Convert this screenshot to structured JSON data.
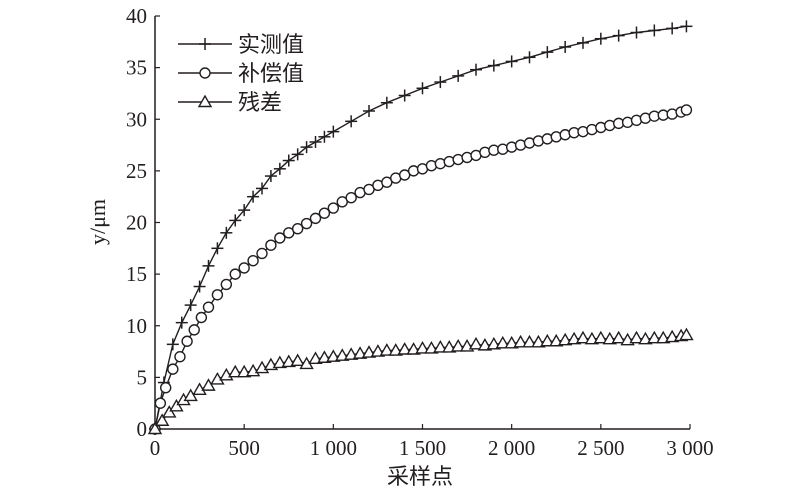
{
  "chart_data": {
    "type": "line",
    "xlabel": "采样点",
    "ylabel": "y/μm",
    "xlim": [
      0,
      3000
    ],
    "ylim": [
      0,
      40
    ],
    "x_ticks": [
      0,
      500,
      1000,
      1500,
      2000,
      2500,
      3000
    ],
    "x_tick_labels": [
      "0",
      "500",
      "1 000",
      "1 500",
      "2 000",
      "2 500",
      "3 000"
    ],
    "y_ticks": [
      0,
      5,
      10,
      15,
      20,
      25,
      30,
      35,
      40
    ],
    "y_tick_labels": [
      "0",
      "5",
      "10",
      "15",
      "20",
      "25",
      "30",
      "35",
      "40"
    ],
    "grid": false,
    "legend_position": "top-left",
    "series": [
      {
        "name": "实测值",
        "marker": "plus",
        "x": [
          0,
          50,
          100,
          150,
          200,
          250,
          300,
          350,
          400,
          450,
          500,
          550,
          600,
          650,
          700,
          750,
          800,
          850,
          900,
          950,
          1000,
          1100,
          1200,
          1300,
          1400,
          1500,
          1600,
          1700,
          1800,
          1900,
          2000,
          2100,
          2200,
          2300,
          2400,
          2500,
          2600,
          2700,
          2800,
          2900,
          2980
        ],
        "y": [
          0,
          4.5,
          8.2,
          10.3,
          12.0,
          13.8,
          15.8,
          17.5,
          19.0,
          20.2,
          21.2,
          22.5,
          23.3,
          24.5,
          25.2,
          26.0,
          26.6,
          27.3,
          27.8,
          28.3,
          28.8,
          29.8,
          30.8,
          31.6,
          32.3,
          33.0,
          33.6,
          34.2,
          34.8,
          35.2,
          35.6,
          36.0,
          36.5,
          37.0,
          37.4,
          37.8,
          38.1,
          38.4,
          38.6,
          38.8,
          39.0
        ]
      },
      {
        "name": "补偿值",
        "marker": "circle",
        "x": [
          0,
          30,
          60,
          100,
          140,
          180,
          220,
          260,
          300,
          350,
          400,
          450,
          500,
          550,
          600,
          650,
          700,
          750,
          800,
          850,
          900,
          950,
          1000,
          1050,
          1100,
          1150,
          1200,
          1250,
          1300,
          1350,
          1400,
          1450,
          1500,
          1550,
          1600,
          1650,
          1700,
          1750,
          1800,
          1850,
          1900,
          1950,
          2000,
          2050,
          2100,
          2150,
          2200,
          2250,
          2300,
          2350,
          2400,
          2450,
          2500,
          2550,
          2600,
          2650,
          2700,
          2750,
          2800,
          2850,
          2900,
          2950,
          2980
        ],
        "y": [
          0,
          2.5,
          4.0,
          5.8,
          7.0,
          8.5,
          9.6,
          10.8,
          11.8,
          13.0,
          14.0,
          15.0,
          15.6,
          16.3,
          17.0,
          17.8,
          18.5,
          19.0,
          19.4,
          19.9,
          20.4,
          20.9,
          21.4,
          22.0,
          22.4,
          22.9,
          23.2,
          23.6,
          23.9,
          24.3,
          24.6,
          25.0,
          25.2,
          25.5,
          25.7,
          25.9,
          26.1,
          26.3,
          26.5,
          26.8,
          27.0,
          27.1,
          27.3,
          27.5,
          27.7,
          27.9,
          28.1,
          28.3,
          28.5,
          28.7,
          28.8,
          29.0,
          29.2,
          29.4,
          29.6,
          29.7,
          29.9,
          30.1,
          30.3,
          30.4,
          30.5,
          30.7,
          30.9
        ]
      },
      {
        "name": "残差",
        "marker": "triangle",
        "x": [
          0,
          40,
          80,
          120,
          160,
          200,
          250,
          300,
          350,
          400,
          450,
          500,
          550,
          600,
          650,
          700,
          750,
          800,
          850,
          900,
          950,
          1000,
          1050,
          1100,
          1150,
          1200,
          1250,
          1300,
          1350,
          1400,
          1450,
          1500,
          1550,
          1600,
          1650,
          1700,
          1750,
          1800,
          1850,
          1900,
          1950,
          2000,
          2050,
          2100,
          2150,
          2200,
          2250,
          2300,
          2350,
          2400,
          2450,
          2500,
          2550,
          2600,
          2650,
          2700,
          2750,
          2800,
          2850,
          2900,
          2950,
          2980
        ],
        "y": [
          0,
          0.8,
          1.6,
          2.2,
          2.8,
          3.2,
          3.8,
          4.2,
          4.8,
          5.2,
          5.5,
          5.5,
          5.6,
          5.9,
          6.2,
          6.4,
          6.5,
          6.6,
          6.3,
          6.8,
          6.9,
          7.0,
          7.1,
          7.2,
          7.3,
          7.4,
          7.5,
          7.6,
          7.6,
          7.7,
          7.7,
          7.8,
          7.8,
          7.9,
          7.9,
          8.0,
          8.0,
          8.2,
          8.1,
          8.2,
          8.3,
          8.3,
          8.4,
          8.4,
          8.4,
          8.5,
          8.5,
          8.6,
          8.7,
          8.8,
          8.7,
          8.8,
          8.7,
          8.8,
          8.6,
          8.8,
          8.7,
          8.8,
          8.8,
          8.9,
          9.0,
          9.1
        ]
      }
    ]
  },
  "colors": {
    "line": "#231f20",
    "background": "#ffffff"
  }
}
